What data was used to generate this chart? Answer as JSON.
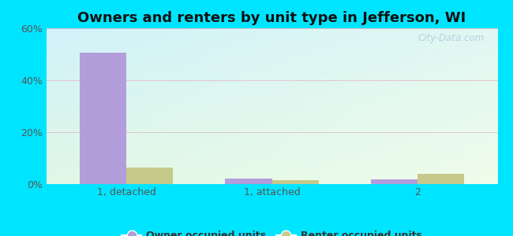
{
  "title": "Owners and renters by unit type in Jefferson, WI",
  "categories": [
    "1, detached",
    "1, attached",
    "2"
  ],
  "owner_values": [
    50.5,
    2.2,
    1.8
  ],
  "renter_values": [
    6.5,
    1.5,
    4.0
  ],
  "owner_color": "#b39ddb",
  "renter_color": "#c5c98a",
  "ylim": [
    0,
    60
  ],
  "yticks": [
    0,
    20,
    40,
    60
  ],
  "ytick_labels": [
    "0%",
    "20%",
    "40%",
    "60%"
  ],
  "legend_owner": "Owner occupied units",
  "legend_renter": "Renter occupied units",
  "outer_bg": "#00e5ff",
  "bar_width": 0.32,
  "watermark": "City-Data.com",
  "title_fontsize": 13,
  "tick_fontsize": 9,
  "legend_fontsize": 9,
  "grid_color": "#e8b8c0",
  "tick_color": "#555555",
  "bg_topleft": [
    0.82,
    0.95,
    0.98
  ],
  "bg_topright": [
    0.88,
    0.97,
    0.95
  ],
  "bg_bottomleft": [
    0.88,
    0.97,
    0.9
  ],
  "bg_bottomright": [
    0.94,
    0.99,
    0.92
  ]
}
